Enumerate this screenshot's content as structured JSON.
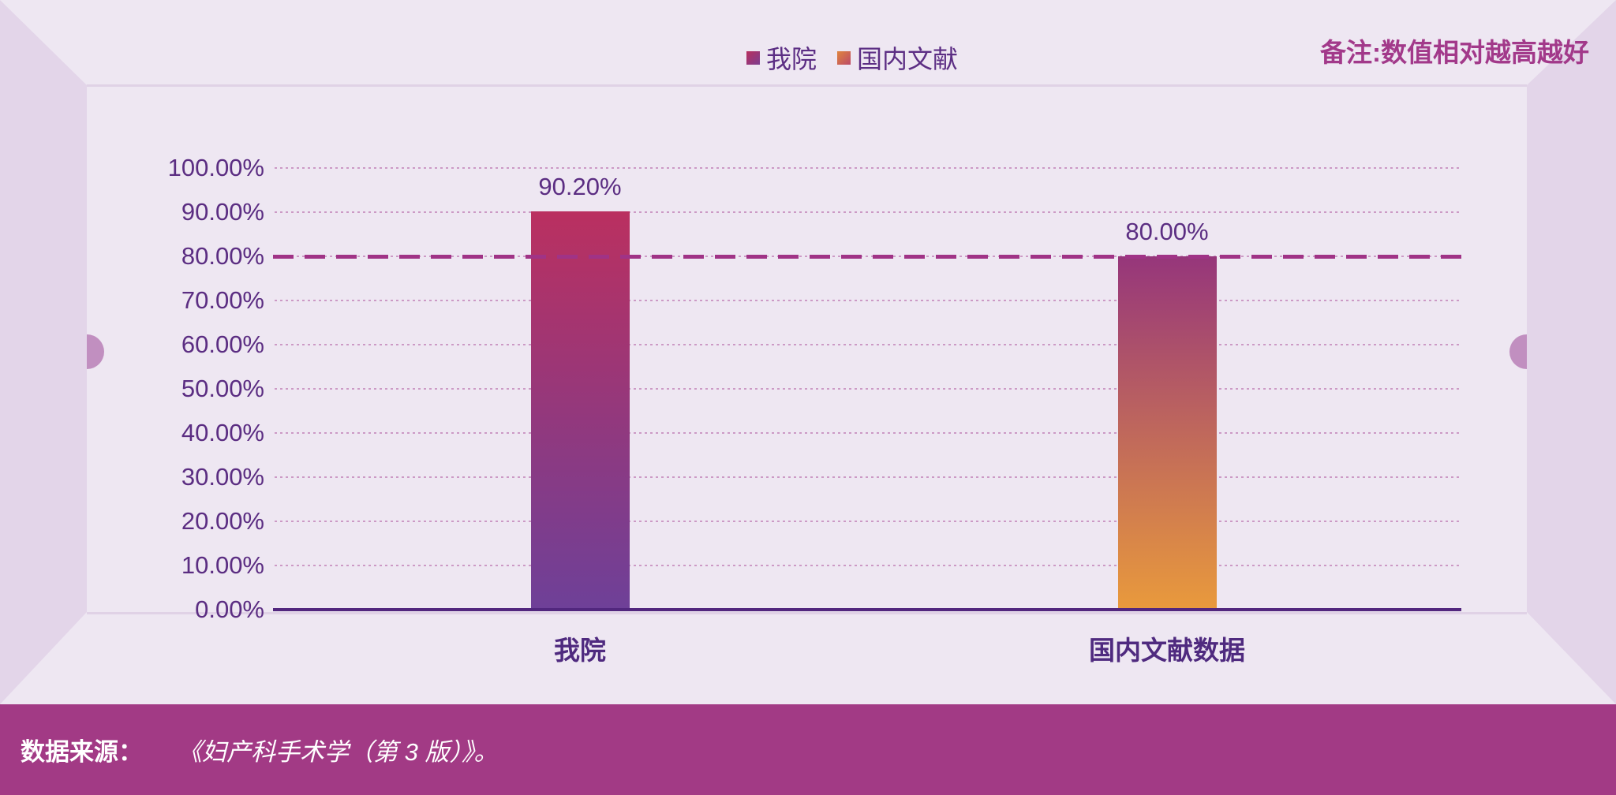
{
  "legend": {
    "items": [
      {
        "label": "我院",
        "swatch_top": "#b82f5e",
        "swatch_bottom": "#7c3e90"
      },
      {
        "label": "国内文献",
        "swatch_top": "#df853e",
        "swatch_bottom": "#bc4a68"
      }
    ]
  },
  "note": {
    "text": "备注:数值相对越高越好"
  },
  "footer": {
    "label": "数据来源：",
    "title": "《妇产科手术学（第 3 版）》。"
  },
  "chart_data": {
    "type": "bar",
    "categories": [
      "我院",
      "国内文献数据"
    ],
    "values": [
      90.2,
      80.0
    ],
    "value_labels": [
      "90.20%",
      "80.00%"
    ],
    "ytick_labels": [
      "100.00%",
      "90.00%",
      "80.00%",
      "70.00%",
      "60.00%",
      "50.00%",
      "40.00%",
      "30.00%",
      "20.00%",
      "10.00%",
      "0.00%"
    ],
    "ylim": [
      0,
      100
    ],
    "grid": "horizontal-dotted",
    "legend_position": "top-center",
    "reference_line": {
      "value": 80,
      "style": "dashed",
      "color": "#a03386"
    },
    "bar_gradients": [
      {
        "top": "#ba3060",
        "bottom": "#6e4098"
      },
      {
        "top": "#96367b",
        "bottom": "#e99a3c"
      }
    ]
  },
  "colors": {
    "background": "#eee7f2",
    "frame_wall": "#e3d5e9",
    "handle": "#c18fc0",
    "axis": "#52277e",
    "tick_text": "#5b2d82",
    "category_text": "#4f2a7f",
    "note_text": "#a2398a",
    "footer_bg": "#a23a85",
    "footer_text": "#ffffff"
  }
}
